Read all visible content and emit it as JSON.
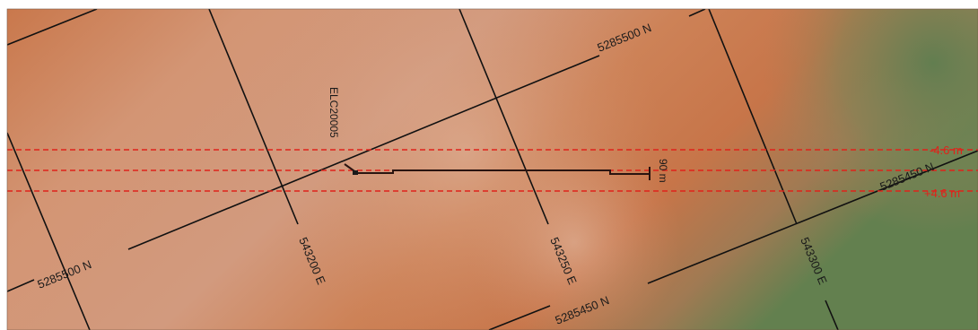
{
  "map": {
    "colors": {
      "terrain_low": "#c96a3a",
      "terrain_mid": "#d49a78",
      "terrain_green": "#6e8a5a",
      "grid_line": "#111111",
      "section_line": "#e0221b",
      "trace": "#2a1410"
    },
    "northing_labels": [
      {
        "id": "n-top",
        "text": "5285500 N"
      },
      {
        "id": "n-left",
        "text": "5285500 N"
      },
      {
        "id": "n-right",
        "text": "5285450 N"
      },
      {
        "id": "n-bottom",
        "text": "5285450 N"
      }
    ],
    "easting_labels": [
      {
        "id": "e-543200",
        "text": "543200 E"
      },
      {
        "id": "e-543250",
        "text": "543250 E"
      },
      {
        "id": "e-543300",
        "text": "543300 E"
      }
    ],
    "section_window": {
      "upper_label": "-4.6 m",
      "lower_label": "+4.6 m"
    },
    "drillhole": {
      "name": "ELC20005",
      "length_label": "90 m"
    }
  }
}
